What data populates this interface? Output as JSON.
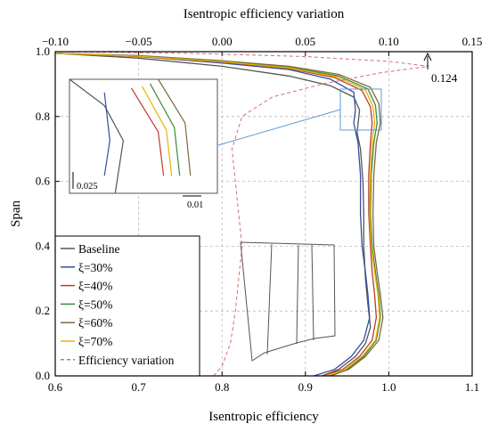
{
  "chart_data": {
    "type": "line",
    "xlabel": "Isentropic efficiency",
    "ylabel": "Span",
    "x2label": "Isentropic efficiency variation",
    "xlim": [
      0.6,
      1.1
    ],
    "ylim": [
      0.0,
      1.0
    ],
    "x2lim": [
      -0.1,
      0.15
    ],
    "xticks": [
      "0.6",
      "0.7",
      "0.8",
      "0.9",
      "1.0",
      "1.1"
    ],
    "yticks": [
      "0.0",
      "0.2",
      "0.4",
      "0.6",
      "0.8",
      "1.0"
    ],
    "x2ticks": [
      "−0.10",
      "−0.05",
      "0.00",
      "0.05",
      "0.10",
      "0.15"
    ],
    "grid": true,
    "legend_position": "bottom-left",
    "series": [
      {
        "name": "Baseline",
        "color": "#555555",
        "dash": "none",
        "axis": "bottom",
        "points": [
          [
            0.6,
            0.995
          ],
          [
            0.7,
            0.98
          ],
          [
            0.8,
            0.955
          ],
          [
            0.88,
            0.925
          ],
          [
            0.93,
            0.895
          ],
          [
            0.958,
            0.86
          ],
          [
            0.965,
            0.82
          ],
          [
            0.962,
            0.75
          ],
          [
            0.966,
            0.7
          ],
          [
            0.969,
            0.6
          ],
          [
            0.97,
            0.5
          ],
          [
            0.97,
            0.4
          ],
          [
            0.972,
            0.3
          ],
          [
            0.975,
            0.22
          ],
          [
            0.978,
            0.15
          ],
          [
            0.972,
            0.1
          ],
          [
            0.96,
            0.06
          ],
          [
            0.94,
            0.02
          ],
          [
            0.92,
            0.0
          ]
        ]
      },
      {
        "name": "ξ=30%",
        "color": "#2f4f9f",
        "dash": "none",
        "axis": "bottom",
        "points": [
          [
            0.6,
            0.995
          ],
          [
            0.7,
            0.985
          ],
          [
            0.8,
            0.965
          ],
          [
            0.88,
            0.945
          ],
          [
            0.93,
            0.915
          ],
          [
            0.958,
            0.875
          ],
          [
            0.96,
            0.82
          ],
          [
            0.958,
            0.78
          ],
          [
            0.963,
            0.72
          ],
          [
            0.966,
            0.62
          ],
          [
            0.966,
            0.5
          ],
          [
            0.968,
            0.4
          ],
          [
            0.972,
            0.32
          ],
          [
            0.975,
            0.25
          ],
          [
            0.977,
            0.18
          ],
          [
            0.97,
            0.11
          ],
          [
            0.955,
            0.06
          ],
          [
            0.935,
            0.02
          ],
          [
            0.91,
            0.0
          ]
        ]
      },
      {
        "name": "ξ=40%",
        "color": "#c0392b",
        "dash": "none",
        "axis": "bottom",
        "points": [
          [
            0.6,
            0.995
          ],
          [
            0.7,
            0.985
          ],
          [
            0.8,
            0.968
          ],
          [
            0.88,
            0.948
          ],
          [
            0.935,
            0.92
          ],
          [
            0.968,
            0.88
          ],
          [
            0.978,
            0.83
          ],
          [
            0.98,
            0.78
          ],
          [
            0.978,
            0.72
          ],
          [
            0.976,
            0.62
          ],
          [
            0.976,
            0.5
          ],
          [
            0.978,
            0.4
          ],
          [
            0.98,
            0.32
          ],
          [
            0.983,
            0.25
          ],
          [
            0.985,
            0.18
          ],
          [
            0.98,
            0.11
          ],
          [
            0.965,
            0.06
          ],
          [
            0.945,
            0.02
          ],
          [
            0.92,
            0.0
          ]
        ]
      },
      {
        "name": "ξ=50%",
        "color": "#3a8a3a",
        "dash": "none",
        "axis": "bottom",
        "points": [
          [
            0.6,
            0.995
          ],
          [
            0.7,
            0.987
          ],
          [
            0.8,
            0.97
          ],
          [
            0.88,
            0.952
          ],
          [
            0.94,
            0.925
          ],
          [
            0.975,
            0.885
          ],
          [
            0.984,
            0.835
          ],
          [
            0.986,
            0.78
          ],
          [
            0.982,
            0.72
          ],
          [
            0.979,
            0.62
          ],
          [
            0.978,
            0.5
          ],
          [
            0.98,
            0.4
          ],
          [
            0.984,
            0.32
          ],
          [
            0.988,
            0.25
          ],
          [
            0.99,
            0.18
          ],
          [
            0.985,
            0.11
          ],
          [
            0.97,
            0.06
          ],
          [
            0.95,
            0.02
          ],
          [
            0.93,
            0.0
          ]
        ]
      },
      {
        "name": "ξ=60%",
        "color": "#7a6a3a",
        "dash": "none",
        "axis": "bottom",
        "points": [
          [
            0.6,
            0.995
          ],
          [
            0.7,
            0.988
          ],
          [
            0.8,
            0.972
          ],
          [
            0.88,
            0.955
          ],
          [
            0.94,
            0.93
          ],
          [
            0.978,
            0.89
          ],
          [
            0.988,
            0.84
          ],
          [
            0.99,
            0.78
          ],
          [
            0.985,
            0.72
          ],
          [
            0.982,
            0.62
          ],
          [
            0.981,
            0.5
          ],
          [
            0.982,
            0.4
          ],
          [
            0.986,
            0.32
          ],
          [
            0.99,
            0.25
          ],
          [
            0.993,
            0.18
          ],
          [
            0.988,
            0.11
          ],
          [
            0.972,
            0.06
          ],
          [
            0.952,
            0.02
          ],
          [
            0.93,
            0.0
          ]
        ]
      },
      {
        "name": "ξ=70%",
        "color": "#e8b400",
        "dash": "none",
        "axis": "bottom",
        "points": [
          [
            0.6,
            0.995
          ],
          [
            0.7,
            0.986
          ],
          [
            0.8,
            0.969
          ],
          [
            0.88,
            0.95
          ],
          [
            0.938,
            0.922
          ],
          [
            0.972,
            0.882
          ],
          [
            0.981,
            0.832
          ],
          [
            0.983,
            0.78
          ],
          [
            0.98,
            0.72
          ],
          [
            0.978,
            0.62
          ],
          [
            0.977,
            0.5
          ],
          [
            0.979,
            0.4
          ],
          [
            0.983,
            0.32
          ],
          [
            0.987,
            0.25
          ],
          [
            0.989,
            0.18
          ],
          [
            0.984,
            0.11
          ],
          [
            0.968,
            0.06
          ],
          [
            0.948,
            0.02
          ],
          [
            0.925,
            0.0
          ]
        ]
      },
      {
        "name": "Efficiency variation",
        "color": "#d07070",
        "dash": "4,3",
        "axis": "top",
        "points": [
          [
            -0.005,
            0.0
          ],
          [
            0.0,
            0.03
          ],
          [
            0.005,
            0.1
          ],
          [
            0.008,
            0.2
          ],
          [
            0.01,
            0.3
          ],
          [
            0.012,
            0.4
          ],
          [
            0.01,
            0.5
          ],
          [
            0.008,
            0.6
          ],
          [
            0.006,
            0.7
          ],
          [
            0.012,
            0.8
          ],
          [
            0.03,
            0.86
          ],
          [
            0.06,
            0.9
          ],
          [
            0.095,
            0.935
          ],
          [
            0.124,
            0.955
          ],
          [
            0.1,
            0.97
          ],
          [
            0.05,
            0.985
          ],
          [
            -0.02,
            0.995
          ],
          [
            -0.1,
            1.0
          ]
        ]
      }
    ],
    "annotations": [
      {
        "text": "0.124",
        "at": [
          0.124,
          0.955
        ],
        "axis": "top"
      }
    ],
    "inset": {
      "scale_y_label": "0.025",
      "scale_x_label": "0.01"
    }
  }
}
